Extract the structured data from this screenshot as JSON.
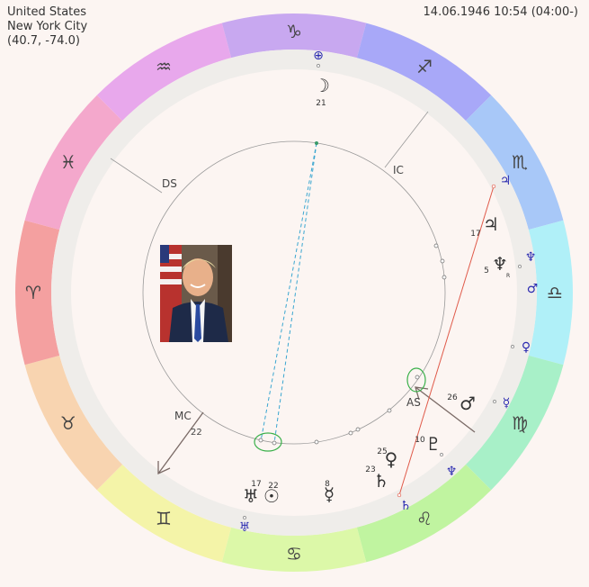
{
  "location": {
    "country": "United States",
    "city": "New York City",
    "coords": "(40.7, -74.0)"
  },
  "datetime": "14.06.1946 10:54 (04:00-)",
  "angles": {
    "ds": "DS",
    "ic": "IC",
    "mc": "MC",
    "as": "AS"
  },
  "colors": {
    "background": "#fcf5f2",
    "house_ring": "#efedea",
    "aspect_red": "#e05a4a",
    "aspect_blue": "#3aa6d0",
    "highlight_green": "#3ab04a",
    "transit_glyph": "#2a2ab0"
  },
  "zodiac": [
    {
      "name": "capricorn",
      "glyph": "♑",
      "color": "#c8a8f0"
    },
    {
      "name": "sagittarius",
      "glyph": "♐",
      "color": "#a8a8f8"
    },
    {
      "name": "scorpio",
      "glyph": "♏",
      "color": "#a8c8f8"
    },
    {
      "name": "libra",
      "glyph": "♎",
      "color": "#b0f0f8"
    },
    {
      "name": "virgo",
      "glyph": "♍",
      "color": "#a8f0c8"
    },
    {
      "name": "leo",
      "glyph": "♌",
      "color": "#c0f4a0"
    },
    {
      "name": "cancer",
      "glyph": "♋",
      "color": "#dcf8a8"
    },
    {
      "name": "gemini",
      "glyph": "♊",
      "color": "#f4f4a8"
    },
    {
      "name": "taurus",
      "glyph": "♉",
      "color": "#f8d4b0"
    },
    {
      "name": "aries",
      "glyph": "♈",
      "color": "#f4a0a0"
    },
    {
      "name": "pisces",
      "glyph": "♓",
      "color": "#f4a8cc"
    },
    {
      "name": "aquarius",
      "glyph": "♒",
      "color": "#e8a8ec"
    }
  ],
  "natal_planets": [
    {
      "name": "moon",
      "glyph": "☽",
      "degree": "21"
    },
    {
      "name": "jupiter",
      "glyph": "♃",
      "degree": "17"
    },
    {
      "name": "neptune",
      "glyph": "♆",
      "degree": "5"
    },
    {
      "name": "mars",
      "glyph": "♂",
      "degree": "26"
    },
    {
      "name": "pluto",
      "glyph": "♇",
      "degree": "10"
    },
    {
      "name": "venus",
      "glyph": "♀",
      "degree": "25"
    },
    {
      "name": "saturn",
      "glyph": "♄",
      "degree": "23"
    },
    {
      "name": "mercury",
      "glyph": "☿",
      "degree": "8"
    },
    {
      "name": "uranus",
      "glyph": "♅",
      "degree": "17"
    },
    {
      "name": "sun",
      "glyph": "☉",
      "degree": "22"
    }
  ],
  "mc_degree": "22",
  "neptune_retro": "R",
  "transit_planets": [
    {
      "name": "earth",
      "glyph": "⊕"
    },
    {
      "name": "jupiter",
      "glyph": "♃"
    },
    {
      "name": "neptune",
      "glyph": "♆"
    },
    {
      "name": "mars",
      "glyph": "♂"
    },
    {
      "name": "venus",
      "glyph": "♀"
    },
    {
      "name": "mercury",
      "glyph": "☿"
    },
    {
      "name": "neptune",
      "glyph": "♆"
    },
    {
      "name": "saturn",
      "glyph": "♄"
    },
    {
      "name": "uranus",
      "glyph": "♅"
    }
  ]
}
